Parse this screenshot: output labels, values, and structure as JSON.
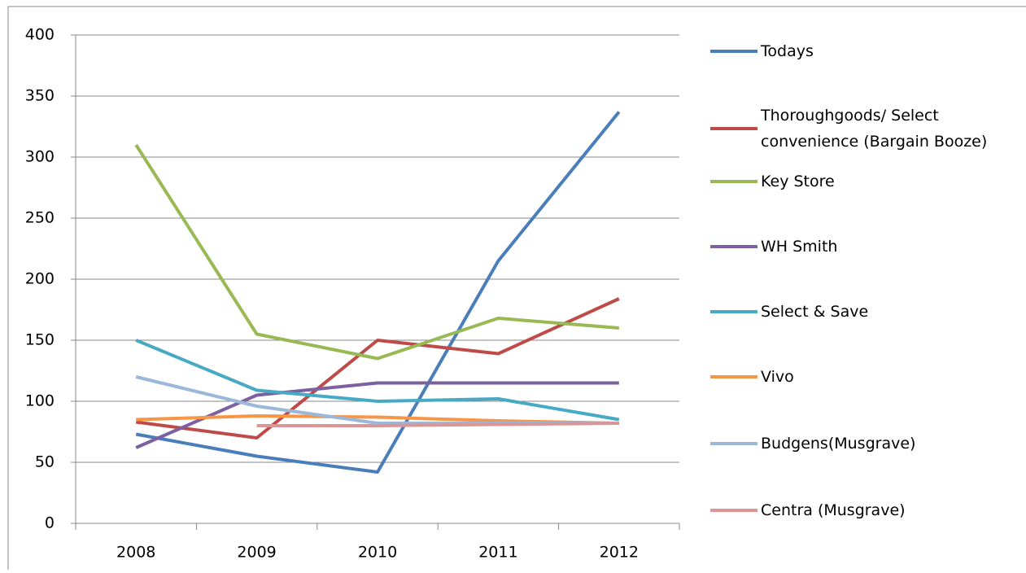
{
  "chart_data": {
    "type": "line",
    "categories": [
      "2008",
      "2009",
      "2010",
      "2011",
      "2012"
    ],
    "series": [
      {
        "name": "Todays",
        "color": "#4a7ebb",
        "values": [
          73,
          55,
          42,
          215,
          337
        ]
      },
      {
        "name": "Thoroughgoods/ Select convenience (Bargain Booze)",
        "color": "#be4b48",
        "values": [
          83,
          70,
          150,
          139,
          184
        ]
      },
      {
        "name": "Key Store",
        "color": "#98b954",
        "values": [
          310,
          155,
          135,
          168,
          160
        ]
      },
      {
        "name": "WH Smith",
        "color": "#7d60a0",
        "values": [
          62,
          105,
          115,
          115,
          115
        ]
      },
      {
        "name": "Select & Save",
        "color": "#46aac5",
        "values": [
          150,
          109,
          100,
          102,
          85
        ]
      },
      {
        "name": "Vivo",
        "color": "#f79646",
        "values": [
          85,
          88,
          87,
          84,
          82
        ]
      },
      {
        "name": "Budgens(Musgrave)",
        "color": "#9bb7d9",
        "values": [
          120,
          96,
          82,
          82,
          82
        ]
      },
      {
        "name": "Centra (Musgrave)",
        "color": "#d99694",
        "values": [
          null,
          80,
          80,
          81,
          82
        ]
      }
    ],
    "ylim": [
      0,
      400
    ],
    "yticks": [
      0,
      50,
      100,
      150,
      200,
      250,
      300,
      350,
      400
    ],
    "grid": true,
    "legend": "right"
  }
}
